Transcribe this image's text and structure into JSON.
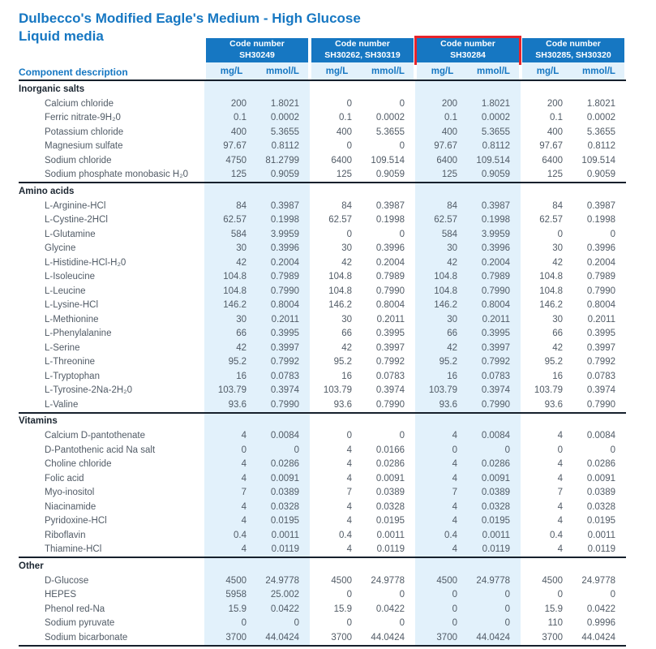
{
  "title": "Dulbecco's Modified Eagle's Medium - High Glucose",
  "subtitle": "Liquid media",
  "component_header": "Component description",
  "code_header_label": "Code number",
  "unit_headers": [
    "mg/L",
    "mmol/L"
  ],
  "columns": [
    {
      "codes": "SH30249",
      "highlighted": false
    },
    {
      "codes": "SH30262, SH30319",
      "highlighted": false
    },
    {
      "codes": "SH30284",
      "highlighted": true
    },
    {
      "codes": "SH30285, SH30320",
      "highlighted": false
    }
  ],
  "colors": {
    "brand_blue": "#1677C2",
    "band_light_blue": "#E2F1FB",
    "highlight_red": "#E8232A",
    "text_gray": "#515B66",
    "rule_dark": "#16202C"
  },
  "sections": [
    {
      "name": "Inorganic salts",
      "rows": [
        {
          "label": "Calcium chloride",
          "values": [
            [
              "200",
              "1.8021"
            ],
            [
              "0",
              "0"
            ],
            [
              "200",
              "1.8021"
            ],
            [
              "200",
              "1.8021"
            ]
          ]
        },
        {
          "label": "Ferric nitrate-9H₂0",
          "values": [
            [
              "0.1",
              "0.0002"
            ],
            [
              "0.1",
              "0.0002"
            ],
            [
              "0.1",
              "0.0002"
            ],
            [
              "0.1",
              "0.0002"
            ]
          ]
        },
        {
          "label": "Potassium chloride",
          "values": [
            [
              "400",
              "5.3655"
            ],
            [
              "400",
              "5.3655"
            ],
            [
              "400",
              "5.3655"
            ],
            [
              "400",
              "5.3655"
            ]
          ]
        },
        {
          "label": "Magnesium sulfate",
          "values": [
            [
              "97.67",
              "0.8112"
            ],
            [
              "0",
              "0"
            ],
            [
              "97.67",
              "0.8112"
            ],
            [
              "97.67",
              "0.8112"
            ]
          ]
        },
        {
          "label": "Sodium chloride",
          "values": [
            [
              "4750",
              "81.2799"
            ],
            [
              "6400",
              "109.514"
            ],
            [
              "6400",
              "109.514"
            ],
            [
              "6400",
              "109.514"
            ]
          ]
        },
        {
          "label": "Sodium phosphate monobasic H₂0",
          "values": [
            [
              "125",
              "0.9059"
            ],
            [
              "125",
              "0.9059"
            ],
            [
              "125",
              "0.9059"
            ],
            [
              "125",
              "0.9059"
            ]
          ]
        }
      ]
    },
    {
      "name": "Amino acids",
      "rows": [
        {
          "label": "L-Arginine-HCl",
          "values": [
            [
              "84",
              "0.3987"
            ],
            [
              "84",
              "0.3987"
            ],
            [
              "84",
              "0.3987"
            ],
            [
              "84",
              "0.3987"
            ]
          ]
        },
        {
          "label": "L-Cystine-2HCl",
          "values": [
            [
              "62.57",
              "0.1998"
            ],
            [
              "62.57",
              "0.1998"
            ],
            [
              "62.57",
              "0.1998"
            ],
            [
              "62.57",
              "0.1998"
            ]
          ]
        },
        {
          "label": "L-Glutamine",
          "values": [
            [
              "584",
              "3.9959"
            ],
            [
              "0",
              "0"
            ],
            [
              "584",
              "3.9959"
            ],
            [
              "0",
              "0"
            ]
          ]
        },
        {
          "label": "Glycine",
          "values": [
            [
              "30",
              "0.3996"
            ],
            [
              "30",
              "0.3996"
            ],
            [
              "30",
              "0.3996"
            ],
            [
              "30",
              "0.3996"
            ]
          ]
        },
        {
          "label": "L-Histidine-HCl-H₂0",
          "values": [
            [
              "42",
              "0.2004"
            ],
            [
              "42",
              "0.2004"
            ],
            [
              "42",
              "0.2004"
            ],
            [
              "42",
              "0.2004"
            ]
          ]
        },
        {
          "label": "L-Isoleucine",
          "values": [
            [
              "104.8",
              "0.7989"
            ],
            [
              "104.8",
              "0.7989"
            ],
            [
              "104.8",
              "0.7989"
            ],
            [
              "104.8",
              "0.7989"
            ]
          ]
        },
        {
          "label": "L-Leucine",
          "values": [
            [
              "104.8",
              "0.7990"
            ],
            [
              "104.8",
              "0.7990"
            ],
            [
              "104.8",
              "0.7990"
            ],
            [
              "104.8",
              "0.7990"
            ]
          ]
        },
        {
          "label": "L-Lysine-HCl",
          "values": [
            [
              "146.2",
              "0.8004"
            ],
            [
              "146.2",
              "0.8004"
            ],
            [
              "146.2",
              "0.8004"
            ],
            [
              "146.2",
              "0.8004"
            ]
          ]
        },
        {
          "label": "L-Methionine",
          "values": [
            [
              "30",
              "0.2011"
            ],
            [
              "30",
              "0.2011"
            ],
            [
              "30",
              "0.2011"
            ],
            [
              "30",
              "0.2011"
            ]
          ]
        },
        {
          "label": "L-Phenylalanine",
          "values": [
            [
              "66",
              "0.3995"
            ],
            [
              "66",
              "0.3995"
            ],
            [
              "66",
              "0.3995"
            ],
            [
              "66",
              "0.3995"
            ]
          ]
        },
        {
          "label": "L-Serine",
          "values": [
            [
              "42",
              "0.3997"
            ],
            [
              "42",
              "0.3997"
            ],
            [
              "42",
              "0.3997"
            ],
            [
              "42",
              "0.3997"
            ]
          ]
        },
        {
          "label": "L-Threonine",
          "values": [
            [
              "95.2",
              "0.7992"
            ],
            [
              "95.2",
              "0.7992"
            ],
            [
              "95.2",
              "0.7992"
            ],
            [
              "95.2",
              "0.7992"
            ]
          ]
        },
        {
          "label": "L-Tryptophan",
          "values": [
            [
              "16",
              "0.0783"
            ],
            [
              "16",
              "0.0783"
            ],
            [
              "16",
              "0.0783"
            ],
            [
              "16",
              "0.0783"
            ]
          ]
        },
        {
          "label": "L-Tyrosine-2Na-2H₂0",
          "values": [
            [
              "103.79",
              "0.3974"
            ],
            [
              "103.79",
              "0.3974"
            ],
            [
              "103.79",
              "0.3974"
            ],
            [
              "103.79",
              "0.3974"
            ]
          ]
        },
        {
          "label": "L-Valine",
          "values": [
            [
              "93.6",
              "0.7990"
            ],
            [
              "93.6",
              "0.7990"
            ],
            [
              "93.6",
              "0.7990"
            ],
            [
              "93.6",
              "0.7990"
            ]
          ]
        }
      ]
    },
    {
      "name": "Vitamins",
      "rows": [
        {
          "label": "Calcium D-pantothenate",
          "values": [
            [
              "4",
              "0.0084"
            ],
            [
              "0",
              "0"
            ],
            [
              "4",
              "0.0084"
            ],
            [
              "4",
              "0.0084"
            ]
          ]
        },
        {
          "label": "D-Pantothenic acid Na salt",
          "values": [
            [
              "0",
              "0"
            ],
            [
              "4",
              "0.0166"
            ],
            [
              "0",
              "0"
            ],
            [
              "0",
              "0"
            ]
          ]
        },
        {
          "label": "Choline chloride",
          "values": [
            [
              "4",
              "0.0286"
            ],
            [
              "4",
              "0.0286"
            ],
            [
              "4",
              "0.0286"
            ],
            [
              "4",
              "0.0286"
            ]
          ]
        },
        {
          "label": "Folic acid",
          "values": [
            [
              "4",
              "0.0091"
            ],
            [
              "4",
              "0.0091"
            ],
            [
              "4",
              "0.0091"
            ],
            [
              "4",
              "0.0091"
            ]
          ]
        },
        {
          "label": "Myo-inositol",
          "values": [
            [
              "7",
              "0.0389"
            ],
            [
              "7",
              "0.0389"
            ],
            [
              "7",
              "0.0389"
            ],
            [
              "7",
              "0.0389"
            ]
          ]
        },
        {
          "label": "Niacinamide",
          "values": [
            [
              "4",
              "0.0328"
            ],
            [
              "4",
              "0.0328"
            ],
            [
              "4",
              "0.0328"
            ],
            [
              "4",
              "0.0328"
            ]
          ]
        },
        {
          "label": "Pyridoxine-HCl",
          "values": [
            [
              "4",
              "0.0195"
            ],
            [
              "4",
              "0.0195"
            ],
            [
              "4",
              "0.0195"
            ],
            [
              "4",
              "0.0195"
            ]
          ]
        },
        {
          "label": "Riboflavin",
          "values": [
            [
              "0.4",
              "0.0011"
            ],
            [
              "0.4",
              "0.0011"
            ],
            [
              "0.4",
              "0.0011"
            ],
            [
              "0.4",
              "0.0011"
            ]
          ]
        },
        {
          "label": "Thiamine-HCl",
          "values": [
            [
              "4",
              "0.0119"
            ],
            [
              "4",
              "0.0119"
            ],
            [
              "4",
              "0.0119"
            ],
            [
              "4",
              "0.0119"
            ]
          ]
        }
      ]
    },
    {
      "name": "Other",
      "rows": [
        {
          "label": "D-Glucose",
          "values": [
            [
              "4500",
              "24.9778"
            ],
            [
              "4500",
              "24.9778"
            ],
            [
              "4500",
              "24.9778"
            ],
            [
              "4500",
              "24.9778"
            ]
          ]
        },
        {
          "label": "HEPES",
          "values": [
            [
              "5958",
              "25.002"
            ],
            [
              "0",
              "0"
            ],
            [
              "0",
              "0"
            ],
            [
              "0",
              "0"
            ]
          ]
        },
        {
          "label": "Phenol red-Na",
          "values": [
            [
              "15.9",
              "0.0422"
            ],
            [
              "15.9",
              "0.0422"
            ],
            [
              "0",
              "0"
            ],
            [
              "15.9",
              "0.0422"
            ]
          ]
        },
        {
          "label": "Sodium pyruvate",
          "values": [
            [
              "0",
              "0"
            ],
            [
              "0",
              "0"
            ],
            [
              "0",
              "0"
            ],
            [
              "110",
              "0.9996"
            ]
          ]
        },
        {
          "label": "Sodium bicarbonate",
          "values": [
            [
              "3700",
              "44.0424"
            ],
            [
              "3700",
              "44.0424"
            ],
            [
              "3700",
              "44.0424"
            ],
            [
              "3700",
              "44.0424"
            ]
          ]
        }
      ]
    }
  ]
}
